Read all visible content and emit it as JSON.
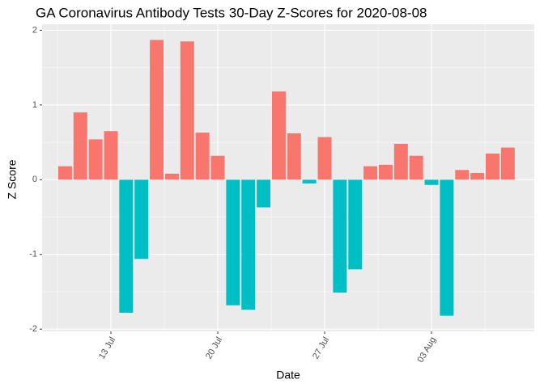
{
  "chart_data": {
    "type": "bar",
    "title": "GA Coronavirus Antibody Tests 30-Day Z-Scores for 2020-08-08",
    "x_label": "Date",
    "y_label": "Z Score",
    "categories": [
      null,
      null,
      null,
      "13 Jul",
      null,
      null,
      null,
      null,
      null,
      null,
      "20 Jul",
      null,
      null,
      null,
      null,
      null,
      null,
      "27 Jul",
      null,
      null,
      null,
      null,
      null,
      null,
      "03 Aug",
      null,
      null,
      null,
      null,
      null
    ],
    "values": [
      0.18,
      0.9,
      0.54,
      0.65,
      -1.78,
      -1.06,
      1.87,
      0.08,
      1.85,
      0.63,
      0.32,
      -1.68,
      -1.74,
      -0.37,
      1.18,
      0.62,
      -0.05,
      0.57,
      -1.51,
      -1.2,
      0.18,
      0.2,
      0.48,
      0.32,
      -0.07,
      -1.82,
      0.13,
      0.09,
      0.35,
      0.43
    ],
    "positive_color": "#F8766D",
    "negative_color": "#00BFC4",
    "ylim": [
      -2.03,
      2.08
    ],
    "yticks": [
      -2,
      -1,
      0,
      1,
      2
    ],
    "grid": true
  }
}
